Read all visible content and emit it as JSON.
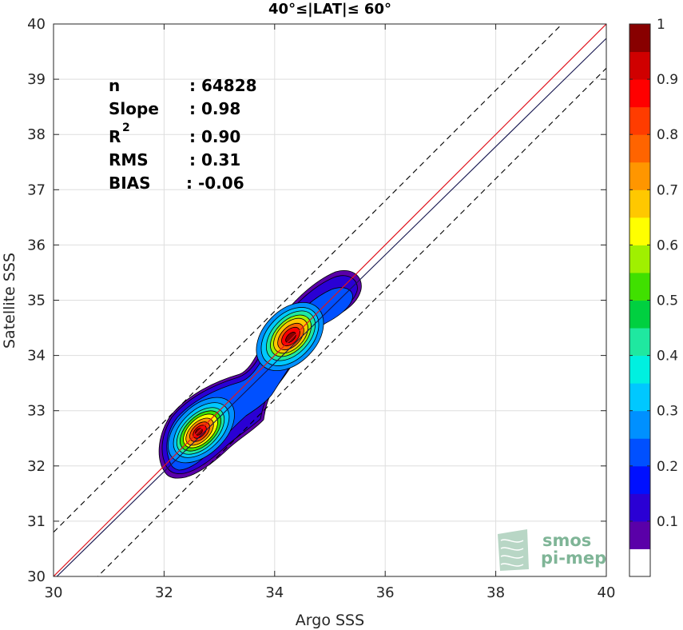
{
  "chart_data": {
    "type": "heatmap",
    "title": "40°≤|LAT|≤ 60°",
    "xlabel": "Argo SSS",
    "ylabel": "Satellite SSS",
    "xlim": [
      30,
      40
    ],
    "ylim": [
      30,
      40
    ],
    "xticks": [
      "30",
      "32",
      "34",
      "36",
      "38",
      "40"
    ],
    "yticks": [
      "30",
      "31",
      "32",
      "33",
      "34",
      "35",
      "36",
      "37",
      "38",
      "39",
      "40"
    ],
    "grid": true,
    "stats": [
      {
        "label": "n",
        "value": ": 64828"
      },
      {
        "label": "Slope",
        "value": ": 0.98"
      },
      {
        "label": "R",
        "sup": "2",
        "value": ": 0.90"
      },
      {
        "label": "RMS",
        "value": ": 0.31"
      },
      {
        "label": "BIAS",
        "value": ": -0.06"
      }
    ],
    "reference_lines": {
      "identity": {
        "color": "#e0141e",
        "x": [
          30,
          40
        ],
        "y": [
          30,
          40
        ]
      },
      "regression": {
        "color": "#15154f",
        "x": [
          30,
          40
        ],
        "y": [
          29.94,
          39.74
        ]
      },
      "upper_bound": {
        "style": "dashed",
        "x": [
          30,
          40
        ],
        "y": [
          30.8,
          40.8
        ]
      },
      "lower_bound": {
        "style": "dashed",
        "x": [
          30,
          40
        ],
        "y": [
          29.2,
          39.2
        ]
      }
    },
    "density_peaks": [
      {
        "x": 32.65,
        "y": 32.6,
        "level": 1.0
      },
      {
        "x": 34.3,
        "y": 34.3,
        "level": 1.0
      }
    ],
    "colorbar": {
      "range": [
        0,
        1
      ],
      "ticks": [
        "0.1",
        "0.2",
        "0.3",
        "0.4",
        "0.5",
        "0.6",
        "0.7",
        "0.8",
        "0.9",
        "1"
      ],
      "colors": [
        "#ffffff",
        "#5a00a8",
        "#2a00d4",
        "#0010ff",
        "#0050ff",
        "#0090ff",
        "#00c8ff",
        "#00f0e0",
        "#1fe8a0",
        "#00d040",
        "#40e000",
        "#a0f000",
        "#ffff00",
        "#ffc800",
        "#ff9600",
        "#ff6400",
        "#ff3c00",
        "#ff0000",
        "#d00000",
        "#880000"
      ]
    }
  },
  "logo": {
    "line1": "smos",
    "line2": "pi-mep"
  }
}
